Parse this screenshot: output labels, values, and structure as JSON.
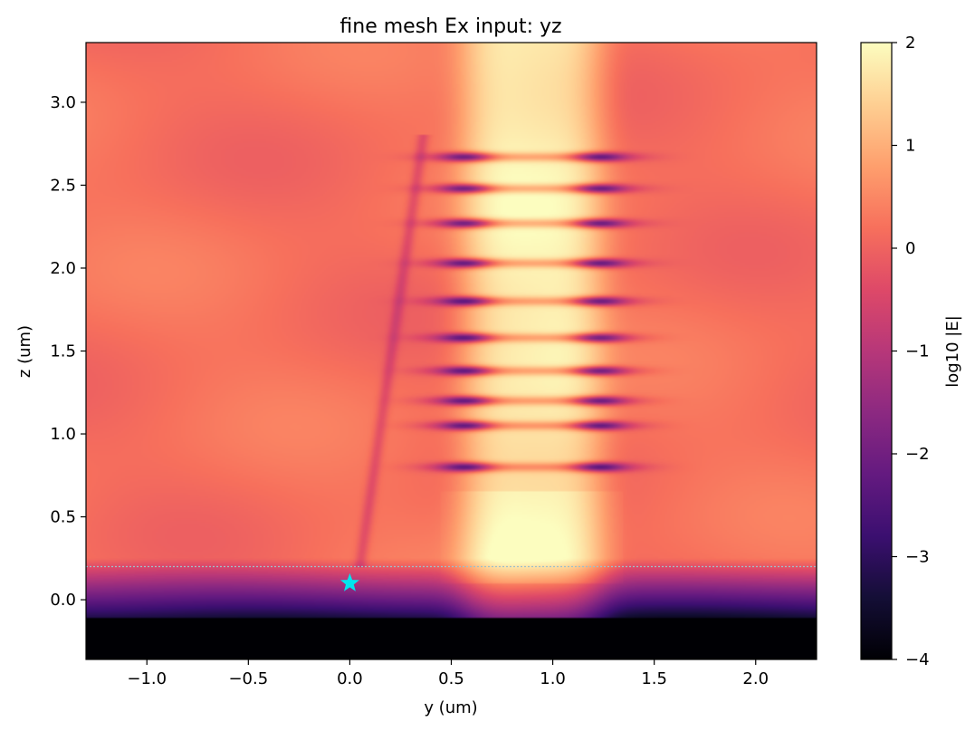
{
  "chart_data": {
    "type": "heatmap",
    "title": "fine mesh Ex input: yz",
    "xlabel": "y (um)",
    "ylabel": "z (um)",
    "xlim": [
      -1.3,
      2.3
    ],
    "ylim": [
      -0.36,
      3.36
    ],
    "xticks": [
      -1.0,
      -0.5,
      0.0,
      0.5,
      1.0,
      1.5,
      2.0
    ],
    "xtick_labels": [
      "−1.0",
      "−0.5",
      "0.0",
      "0.5",
      "1.0",
      "1.5",
      "2.0"
    ],
    "yticks": [
      0.0,
      0.5,
      1.0,
      1.5,
      2.0,
      2.5,
      3.0
    ],
    "ytick_labels": [
      "0.0",
      "0.5",
      "1.0",
      "1.5",
      "2.0",
      "2.5",
      "3.0"
    ],
    "colormap": "magma",
    "colorbar": {
      "label": "log10 |E|",
      "range": [
        -4,
        2
      ],
      "ticks": [
        -4,
        -3,
        -2,
        -1,
        0,
        1,
        2
      ],
      "tick_labels": [
        "−4",
        "−3",
        "−2",
        "−1",
        "0",
        "1",
        "2"
      ]
    },
    "annotations": {
      "source_marker": {
        "shape": "star",
        "y": 0.0,
        "z": 0.1,
        "color": "#00e5ee"
      },
      "interface_line": {
        "z": 0.2,
        "style": "dotted",
        "color": "#9fbfc9"
      }
    },
    "field_description": {
      "background_log10E": 0.2,
      "bright_column_center_y": 0.9,
      "bright_column_halfwidth": 0.35,
      "standing_wave_nodes_z": [
        0.8,
        1.05,
        1.2,
        1.38,
        1.58,
        1.8,
        2.03,
        2.27,
        2.48,
        2.67
      ],
      "substrate_top_z": -0.1
    },
    "grid": false
  }
}
